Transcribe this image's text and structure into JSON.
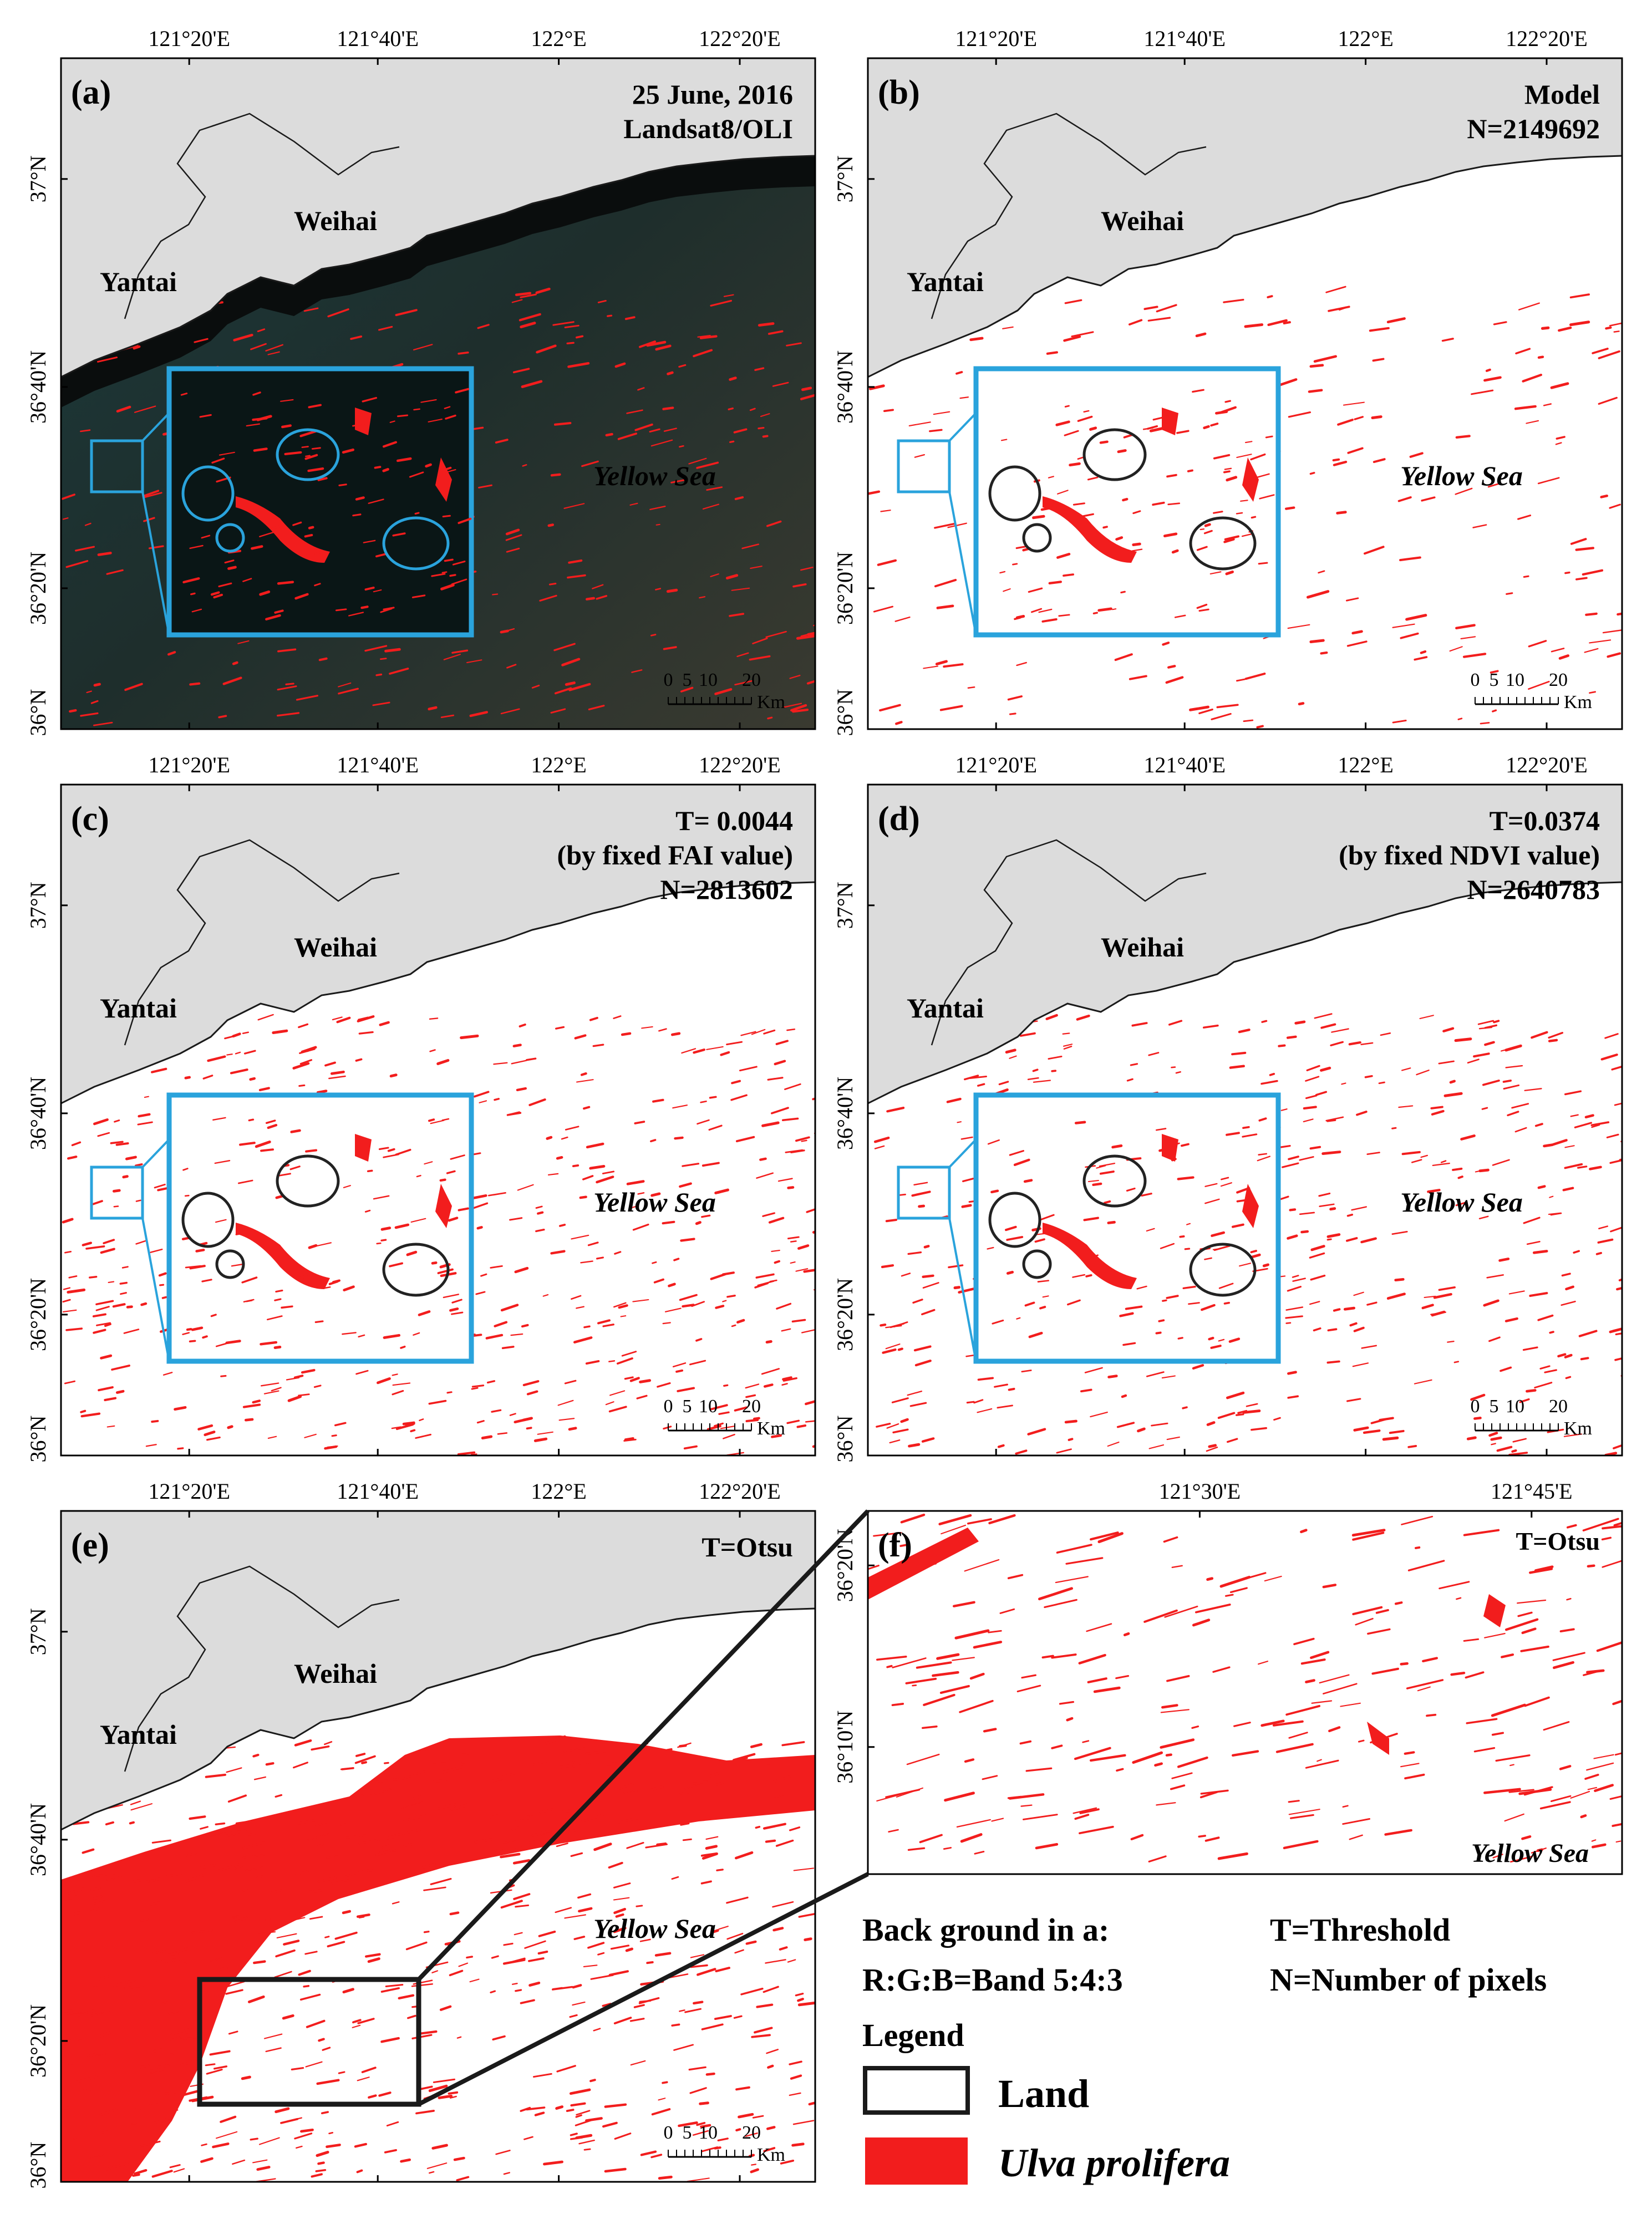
{
  "figure": {
    "panels": [
      {
        "id": "a",
        "label": "(a)",
        "info_lines": [
          "25 June, 2016",
          "Landsat8/OLI"
        ],
        "background": "dark-satellite",
        "has_inset": true,
        "inset_color": "#2aa3dc",
        "circle_color": "#2aa3dc",
        "lon_ticks": [
          "121°20'E",
          "121°40'E",
          "122°E",
          "122°20'E"
        ],
        "lat_ticks": [
          "37°N",
          "36°40'N",
          "36°20'N",
          "36°N"
        ],
        "place_names": [
          "Weihai",
          "Yantai",
          "Yellow Sea"
        ],
        "scale": {
          "ticks": [
            "0",
            "5",
            "10",
            "20"
          ],
          "unit": "Km"
        }
      },
      {
        "id": "b",
        "label": "(b)",
        "info_lines": [
          "Model",
          "N=2149692"
        ],
        "background": "white",
        "has_inset": true,
        "inset_color": "#2aa3dc",
        "circle_color": "#222222",
        "lon_ticks": [
          "121°20'E",
          "121°40'E",
          "122°E",
          "122°20'E"
        ],
        "lat_ticks": [
          "37°N",
          "36°40'N",
          "36°20'N",
          "36°N"
        ],
        "place_names": [
          "Weihai",
          "Yantai",
          "Yellow Sea"
        ],
        "scale": {
          "ticks": [
            "0",
            "5",
            "10",
            "20"
          ],
          "unit": "Km"
        }
      },
      {
        "id": "c",
        "label": "(c)",
        "info_lines": [
          "T= 0.0044",
          "(by fixed FAI value)",
          "N=2813602"
        ],
        "background": "white",
        "has_inset": true,
        "inset_color": "#2aa3dc",
        "circle_color": "#222222",
        "lon_ticks": [
          "121°20'E",
          "121°40'E",
          "122°E",
          "122°20'E"
        ],
        "lat_ticks": [
          "37°N",
          "36°40'N",
          "36°20'N",
          "36°N"
        ],
        "place_names": [
          "Weihai",
          "Yantai",
          "Yellow Sea"
        ],
        "scale": {
          "ticks": [
            "0",
            "5",
            "10",
            "20"
          ],
          "unit": "Km"
        }
      },
      {
        "id": "d",
        "label": "(d)",
        "info_lines": [
          "T=0.0374",
          "(by fixed NDVI value)",
          "N=2640783"
        ],
        "background": "white",
        "has_inset": true,
        "inset_color": "#2aa3dc",
        "circle_color": "#222222",
        "lon_ticks": [
          "121°20'E",
          "121°40'E",
          "122°E",
          "122°20'E"
        ],
        "lat_ticks": [
          "37°N",
          "36°40'N",
          "36°20'N",
          "36°N"
        ],
        "place_names": [
          "Weihai",
          "Yantai",
          "Yellow Sea"
        ],
        "scale": {
          "ticks": [
            "0",
            "5",
            "10",
            "20"
          ],
          "unit": "Km"
        }
      },
      {
        "id": "e",
        "label": "(e)",
        "info_lines": [
          "T=Otsu"
        ],
        "background": "white",
        "has_inset": false,
        "lon_ticks": [
          "121°20'E",
          "121°40'E",
          "122°E",
          "122°20'E"
        ],
        "lat_ticks": [
          "37°N",
          "36°40'N",
          "36°20'N",
          "36°N"
        ],
        "place_names": [
          "Weihai",
          "Yantai",
          "Yellow Sea"
        ],
        "scale": {
          "ticks": [
            "0",
            "5",
            "10",
            "20"
          ],
          "unit": "Km"
        }
      },
      {
        "id": "f",
        "label": "(f)",
        "info_lines": [
          "T=Otsu"
        ],
        "background": "white",
        "has_inset": false,
        "lon_ticks": [
          "121°30'E",
          "121°45'E"
        ],
        "lat_ticks": [
          "36°20'N",
          "36°10'N"
        ],
        "place_names": [
          "Yellow Sea"
        ],
        "scale": null
      }
    ],
    "notes": {
      "background_title": "Back ground in a:",
      "background_bands": "R:G:B=Band 5:4:3",
      "threshold_def": "T=Threshold",
      "pixels_def": "N=Number of pixels"
    },
    "legend": {
      "title": "Legend",
      "items": [
        {
          "label": "Land",
          "symbol": "outline-box",
          "color": "#1a1a1a"
        },
        {
          "label": "Ulva prolifera",
          "symbol": "filled-box",
          "color": "#f21d1d"
        }
      ]
    },
    "colors": {
      "ulva": "#f21d1d",
      "land": "#dcdcdc",
      "inset_frame": "#2aa3dc",
      "zoom_frame": "#1a1a1a",
      "sea_dark": "#1c2c2a"
    }
  }
}
